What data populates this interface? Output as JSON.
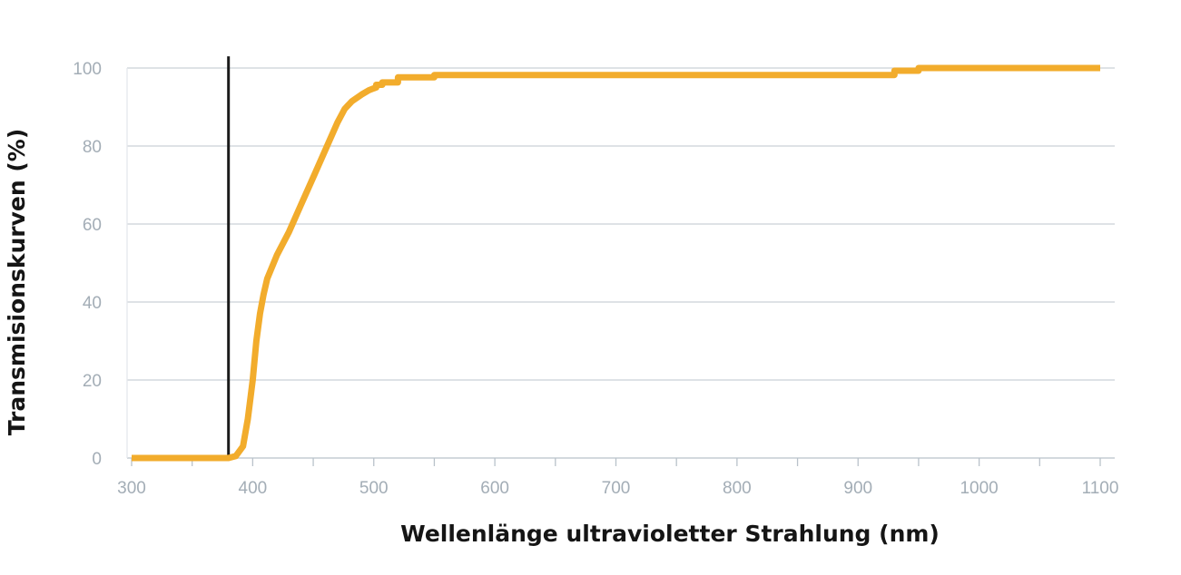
{
  "chart_data": {
    "type": "line",
    "title": "",
    "xlabel": "Wellenlänge ultravioletter Strahlung (nm)",
    "ylabel": "Transmisionskurven (%)",
    "xlim": [
      300,
      1100
    ],
    "ylim": [
      0,
      100
    ],
    "x_ticks": [
      300,
      400,
      500,
      600,
      700,
      800,
      900,
      1000,
      1100
    ],
    "x_tick_labels": [
      "300",
      "400",
      "500",
      "600",
      "700",
      "800",
      "900",
      "1000",
      "1100"
    ],
    "y_ticks": [
      0,
      20,
      40,
      60,
      80,
      100
    ],
    "y_tick_labels": [
      "0",
      "20",
      "40",
      "60",
      "80",
      "100"
    ],
    "grid": true,
    "legend": "none",
    "reference_line": {
      "x": 380,
      "y_top": 103,
      "color": "#1a1a1a"
    },
    "series": [
      {
        "color": "#f2ac2c",
        "x": [
          300,
          380,
          386,
          392,
          396,
          400,
          403,
          406,
          409,
          412,
          416,
          420,
          430,
          440,
          450,
          460,
          470,
          476,
          482,
          490,
          496,
          500,
          502,
          502,
          507,
          507,
          520,
          520,
          550,
          550,
          930,
          930,
          950,
          950,
          1100
        ],
        "y": [
          0,
          0,
          0.5,
          3,
          10,
          20,
          30,
          37,
          42,
          46,
          49,
          52,
          58,
          65,
          72,
          79,
          86,
          89.5,
          91.5,
          93.2,
          94.3,
          94.8,
          95.0,
          95.7,
          95.7,
          96.3,
          96.3,
          97.6,
          97.6,
          98.2,
          98.2,
          99.3,
          99.3,
          100,
          100
        ]
      }
    ]
  }
}
